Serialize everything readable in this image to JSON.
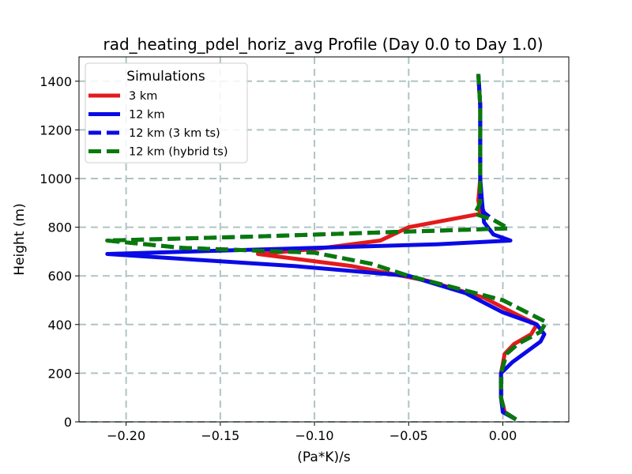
{
  "chart_data": {
    "type": "line",
    "title": "rad_heating_pdel_horiz_avg Profile (Day 0.0 to Day 1.0)",
    "xlabel": "(Pa*K)/s",
    "ylabel": "Height (m)",
    "xlim": [
      -0.225,
      0.035
    ],
    "ylim": [
      0,
      1500
    ],
    "x_ticks": [
      -0.2,
      -0.15,
      -0.1,
      -0.05,
      0.0
    ],
    "x_tick_labels": [
      "−0.20",
      "−0.15",
      "−0.10",
      "−0.05",
      "0.00"
    ],
    "y_ticks": [
      0,
      200,
      400,
      600,
      800,
      1000,
      1200,
      1400
    ],
    "y_tick_labels": [
      "0",
      "200",
      "400",
      "600",
      "800",
      "1000",
      "1200",
      "1400"
    ],
    "grid": true,
    "legend": {
      "title": "Simulations",
      "location": "upper-left"
    },
    "series": [
      {
        "name": "3 km",
        "color": "#e41a1c",
        "style": "solid",
        "points": [
          [
            0.007,
            10
          ],
          [
            0.001,
            40
          ],
          [
            -0.001,
            100
          ],
          [
            -0.001,
            200
          ],
          [
            0.001,
            280
          ],
          [
            0.006,
            320
          ],
          [
            0.015,
            360
          ],
          [
            0.018,
            400
          ],
          [
            0.005,
            450
          ],
          [
            -0.01,
            510
          ],
          [
            -0.04,
            580
          ],
          [
            -0.08,
            640
          ],
          [
            -0.13,
            690
          ],
          [
            -0.1,
            710
          ],
          [
            -0.065,
            745
          ],
          [
            -0.05,
            800
          ],
          [
            -0.012,
            855
          ],
          [
            -0.013,
            910
          ],
          [
            -0.012,
            1000
          ],
          [
            -0.012,
            1100
          ],
          [
            -0.012,
            1200
          ],
          [
            -0.012,
            1300
          ],
          [
            -0.013,
            1430
          ]
        ]
      },
      {
        "name": "12 km",
        "color": "#0a0ae6",
        "style": "solid",
        "points": [
          [
            0.007,
            10
          ],
          [
            0.0,
            40
          ],
          [
            -0.001,
            100
          ],
          [
            -0.001,
            200
          ],
          [
            0.005,
            245
          ],
          [
            0.02,
            330
          ],
          [
            0.022,
            360
          ],
          [
            0.018,
            400
          ],
          [
            0.0,
            450
          ],
          [
            -0.02,
            530
          ],
          [
            -0.05,
            600
          ],
          [
            -0.11,
            640
          ],
          [
            -0.21,
            690
          ],
          [
            -0.1,
            715
          ],
          [
            -0.035,
            730
          ],
          [
            0.004,
            745
          ],
          [
            -0.005,
            770
          ],
          [
            -0.01,
            820
          ],
          [
            -0.011,
            900
          ],
          [
            -0.012,
            1000
          ],
          [
            -0.012,
            1100
          ],
          [
            -0.012,
            1200
          ],
          [
            -0.012,
            1300
          ],
          [
            -0.013,
            1430
          ]
        ]
      },
      {
        "name": "12 km (3 km ts)",
        "color": "#0a0ae6",
        "style": "dashed",
        "points": [
          [
            0.007,
            10
          ],
          [
            0.001,
            40
          ],
          [
            -0.001,
            100
          ],
          [
            -0.001,
            200
          ],
          [
            0.002,
            280
          ],
          [
            0.008,
            320
          ],
          [
            0.02,
            370
          ],
          [
            0.023,
            410
          ],
          [
            0.0,
            500
          ],
          [
            -0.03,
            560
          ],
          [
            -0.05,
            600
          ],
          [
            -0.07,
            650
          ],
          [
            -0.1,
            695
          ],
          [
            -0.17,
            715
          ],
          [
            -0.21,
            745
          ],
          [
            -0.13,
            762
          ],
          [
            -0.05,
            782
          ],
          [
            0.003,
            795
          ],
          [
            -0.005,
            830
          ],
          [
            -0.01,
            860
          ],
          [
            -0.012,
            900
          ],
          [
            -0.012,
            1000
          ],
          [
            -0.012,
            1100
          ],
          [
            -0.012,
            1200
          ],
          [
            -0.012,
            1300
          ],
          [
            -0.013,
            1430
          ]
        ]
      },
      {
        "name": "12 km (hybrid ts)",
        "color": "#077a07",
        "style": "dashed",
        "points": [
          [
            0.007,
            10
          ],
          [
            0.001,
            40
          ],
          [
            -0.001,
            100
          ],
          [
            -0.001,
            200
          ],
          [
            0.002,
            280
          ],
          [
            0.008,
            320
          ],
          [
            0.02,
            370
          ],
          [
            0.023,
            410
          ],
          [
            0.0,
            500
          ],
          [
            -0.03,
            560
          ],
          [
            -0.05,
            600
          ],
          [
            -0.07,
            650
          ],
          [
            -0.1,
            695
          ],
          [
            -0.17,
            715
          ],
          [
            -0.21,
            745
          ],
          [
            -0.13,
            762
          ],
          [
            -0.05,
            782
          ],
          [
            0.003,
            795
          ],
          [
            -0.005,
            830
          ],
          [
            -0.015,
            855
          ],
          [
            -0.012,
            900
          ],
          [
            -0.012,
            1000
          ],
          [
            -0.012,
            1100
          ],
          [
            -0.012,
            1200
          ],
          [
            -0.012,
            1300
          ],
          [
            -0.013,
            1430
          ]
        ]
      }
    ]
  }
}
